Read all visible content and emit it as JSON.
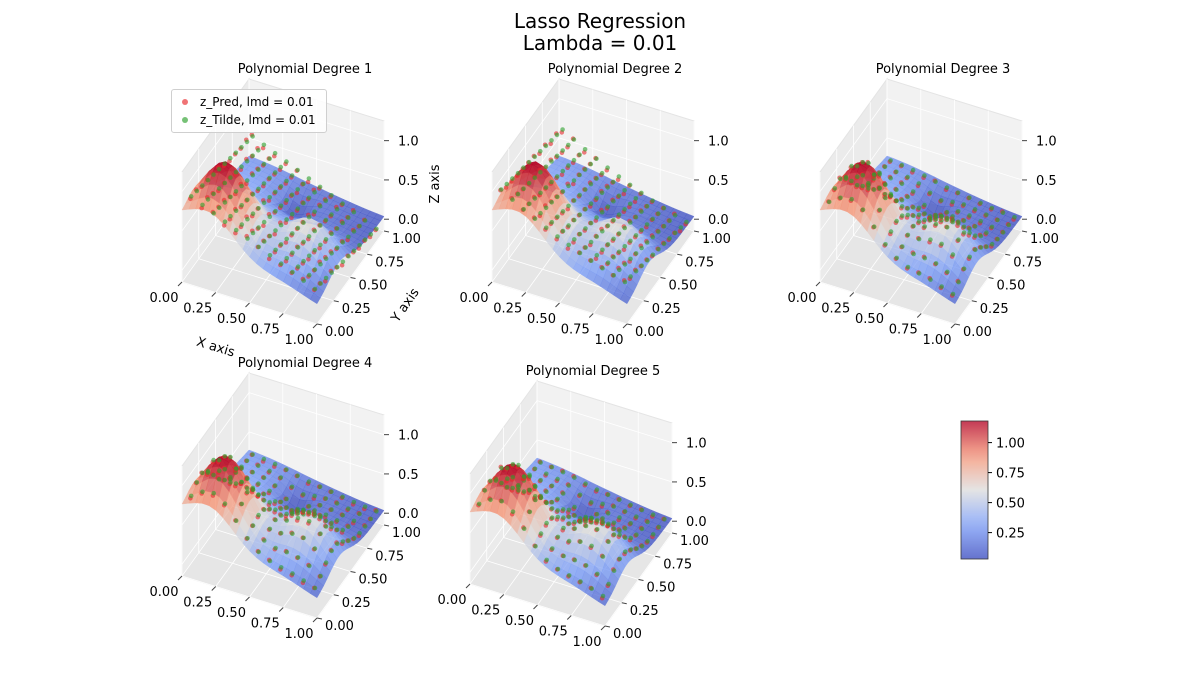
{
  "figure": {
    "title_line1": "Lasso Regression",
    "title_line2": "Lambda = 0.01"
  },
  "legend": {
    "items": [
      {
        "label": "z_Pred, lmd = 0.01",
        "color": "#e8282b"
      },
      {
        "label": "z_Tilde, lmd = 0.01",
        "color": "#2ca02c"
      }
    ]
  },
  "colorbar": {
    "colormap": "coolwarm",
    "range": [
      0.03,
      1.18
    ],
    "ticks": [
      "0.25",
      "0.50",
      "0.75",
      "1.00"
    ]
  },
  "chart_data": [
    {
      "type": "scatter",
      "title": "Polynomial Degree 1",
      "surface_function": "franke",
      "x_range": [
        0,
        1
      ],
      "y_range": [
        0,
        1
      ],
      "z_ticks": [
        "0.0",
        "0.5",
        "1.0"
      ],
      "x_ticks": [
        "0.00",
        "0.25",
        "0.50",
        "0.75",
        "1.00"
      ],
      "y_ticks": [
        "0.00",
        "0.25",
        "0.50",
        "0.75",
        "1.00"
      ],
      "xlabel": "X axis",
      "ylabel": "Y axis",
      "zlabel": "Z axis",
      "fit_model": "plane",
      "series": [
        {
          "name": "z_Pred, lmd = 0.01",
          "color": "#e8282b"
        },
        {
          "name": "z_Tilde, lmd = 0.01",
          "color": "#2ca02c"
        }
      ]
    },
    {
      "type": "scatter",
      "title": "Polynomial Degree 2",
      "surface_function": "franke",
      "x_range": [
        0,
        1
      ],
      "y_range": [
        0,
        1
      ],
      "z_ticks": [
        "0.0",
        "0.5",
        "1.0"
      ],
      "x_ticks": [
        "0.00",
        "0.25",
        "0.50",
        "0.75",
        "1.00"
      ],
      "y_ticks": [
        "0.00",
        "0.25",
        "0.50",
        "0.75",
        "1.00"
      ],
      "fit_model": "quadratic"
    },
    {
      "type": "scatter",
      "title": "Polynomial Degree 3",
      "surface_function": "franke",
      "x_range": [
        0,
        1
      ],
      "y_range": [
        0,
        1
      ],
      "z_ticks": [
        "0.0",
        "0.5",
        "1.0"
      ],
      "x_ticks": [
        "0.00",
        "0.25",
        "0.50",
        "0.75",
        "1.00"
      ],
      "y_ticks": [
        "0.00",
        "0.25",
        "0.50",
        "0.75",
        "1.00"
      ],
      "fit_model": "near_surface"
    },
    {
      "type": "scatter",
      "title": "Polynomial Degree 4",
      "surface_function": "franke",
      "x_range": [
        0,
        1
      ],
      "y_range": [
        0,
        1
      ],
      "z_ticks": [
        "0.0",
        "0.5",
        "1.0"
      ],
      "x_ticks": [
        "0.00",
        "0.25",
        "0.50",
        "0.75",
        "1.00"
      ],
      "y_ticks": [
        "0.00",
        "0.25",
        "0.50",
        "0.75",
        "1.00"
      ],
      "fit_model": "near_surface"
    },
    {
      "type": "scatter",
      "title": "Polynomial Degree 5",
      "surface_function": "franke",
      "x_range": [
        0,
        1
      ],
      "y_range": [
        0,
        1
      ],
      "z_ticks": [
        "0.0",
        "0.5",
        "1.0"
      ],
      "x_ticks": [
        "0.00",
        "0.25",
        "0.50",
        "0.75",
        "1.00"
      ],
      "y_ticks": [
        "0.00",
        "0.25",
        "0.50",
        "0.75",
        "1.00"
      ],
      "fit_model": "near_surface"
    }
  ]
}
